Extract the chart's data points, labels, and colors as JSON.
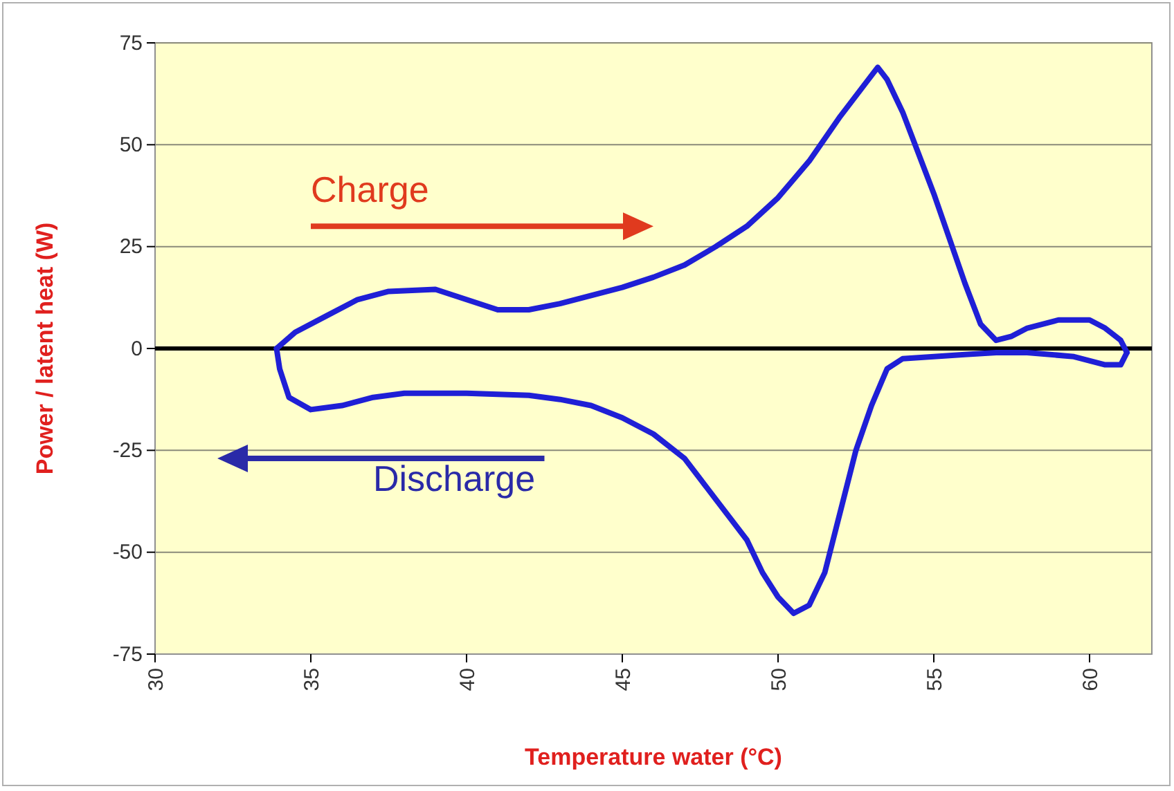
{
  "chart_data": {
    "type": "line",
    "xlabel": "Temperature water (°C)",
    "ylabel": "Power / latent heat (W)",
    "xlim": [
      30,
      62
    ],
    "ylim": [
      -75,
      75
    ],
    "xticks": [
      30,
      35,
      40,
      45,
      50,
      55,
      60
    ],
    "yticks": [
      -75,
      -50,
      -25,
      0,
      25,
      50,
      75
    ],
    "grid": "y",
    "marker": "none",
    "line_style": "solid",
    "series": [
      {
        "color": "#1f1fd6",
        "x": [
          33.9,
          34.5,
          35.5,
          36.5,
          37.5,
          39,
          40,
          41,
          42,
          43,
          44,
          45,
          46,
          47,
          48,
          49,
          50,
          51,
          52,
          53,
          53.2,
          53.5,
          54,
          55,
          56,
          56.5,
          57,
          57.5,
          58,
          59,
          60,
          60.5,
          61,
          61.2
        ],
        "values": [
          0,
          4,
          8,
          12,
          14,
          14.5,
          12,
          9.5,
          9.5,
          11,
          13,
          15,
          17.5,
          20.5,
          25,
          30,
          37,
          46,
          57,
          67,
          69,
          66,
          58,
          38,
          16,
          6,
          2,
          3,
          5,
          7,
          7,
          5,
          2,
          -1
        ]
      },
      {
        "color": "#1f1fd6",
        "x": [
          33.9,
          34,
          34.3,
          35,
          36,
          37,
          38,
          40,
          42,
          43,
          44,
          45,
          46,
          47,
          48,
          49,
          49.5,
          50,
          50.5,
          51,
          51.5,
          52,
          52.5,
          53,
          53.5,
          54,
          55,
          56,
          57,
          58,
          59.5,
          60.5,
          61,
          61.2
        ],
        "values": [
          0,
          -5,
          -12,
          -15,
          -14,
          -12,
          -11,
          -11,
          -11.5,
          -12.5,
          -14,
          -17,
          -21,
          -27,
          -37,
          -47,
          -55,
          -61,
          -65,
          -63,
          -55,
          -40,
          -25,
          -14,
          -5,
          -2.5,
          -2,
          -1.5,
          -1,
          -1,
          -2,
          -4,
          -4,
          -1
        ]
      }
    ],
    "ref_lines": [
      {
        "axis": "y",
        "value": 0,
        "color": "#000000"
      }
    ],
    "annotations": [
      "Charge",
      "Discharge"
    ]
  }
}
